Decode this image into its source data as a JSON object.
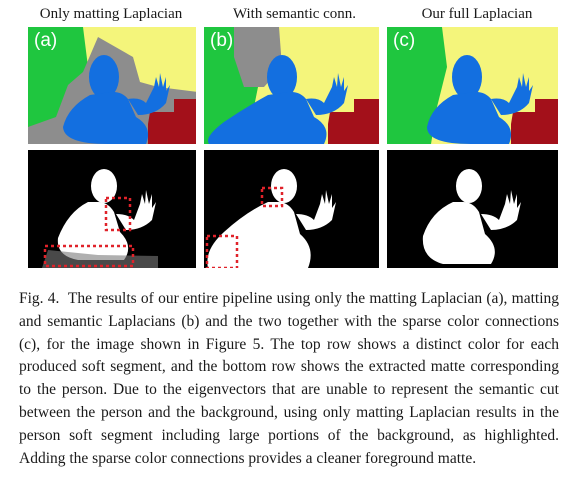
{
  "figure": {
    "columns": [
      {
        "title": "Only matting Laplacian",
        "label": "(a)"
      },
      {
        "title": "With semantic conn.",
        "label": "(b)"
      },
      {
        "title": "Our full Laplacian",
        "label": "(c)"
      }
    ],
    "colors": {
      "background_green": "#1fc63f",
      "background_yellow": "#f4f57b",
      "person_blue": "#136fe0",
      "stairs_red": "#a3101a",
      "gray_region": "#8d8d8d",
      "highlight_red": "#e0222a"
    },
    "caption_label": "Fig. 4.",
    "caption_text": "The results of our entire pipeline using only the matting Laplacian (a), matting and semantic Laplacians (b) and the two together with the sparse color connections (c), for the image shown in Figure 5. The top row shows a distinct color for each produced soft segment, and the bottom row shows the extracted matte corresponding to the person. Due to the eigenvectors that are unable to represent the semantic cut between the person and the background, using only matting Laplacian results in the person soft segment including large portions of the background, as highlighted. Adding the sparse color connections provides a cleaner foreground matte."
  }
}
